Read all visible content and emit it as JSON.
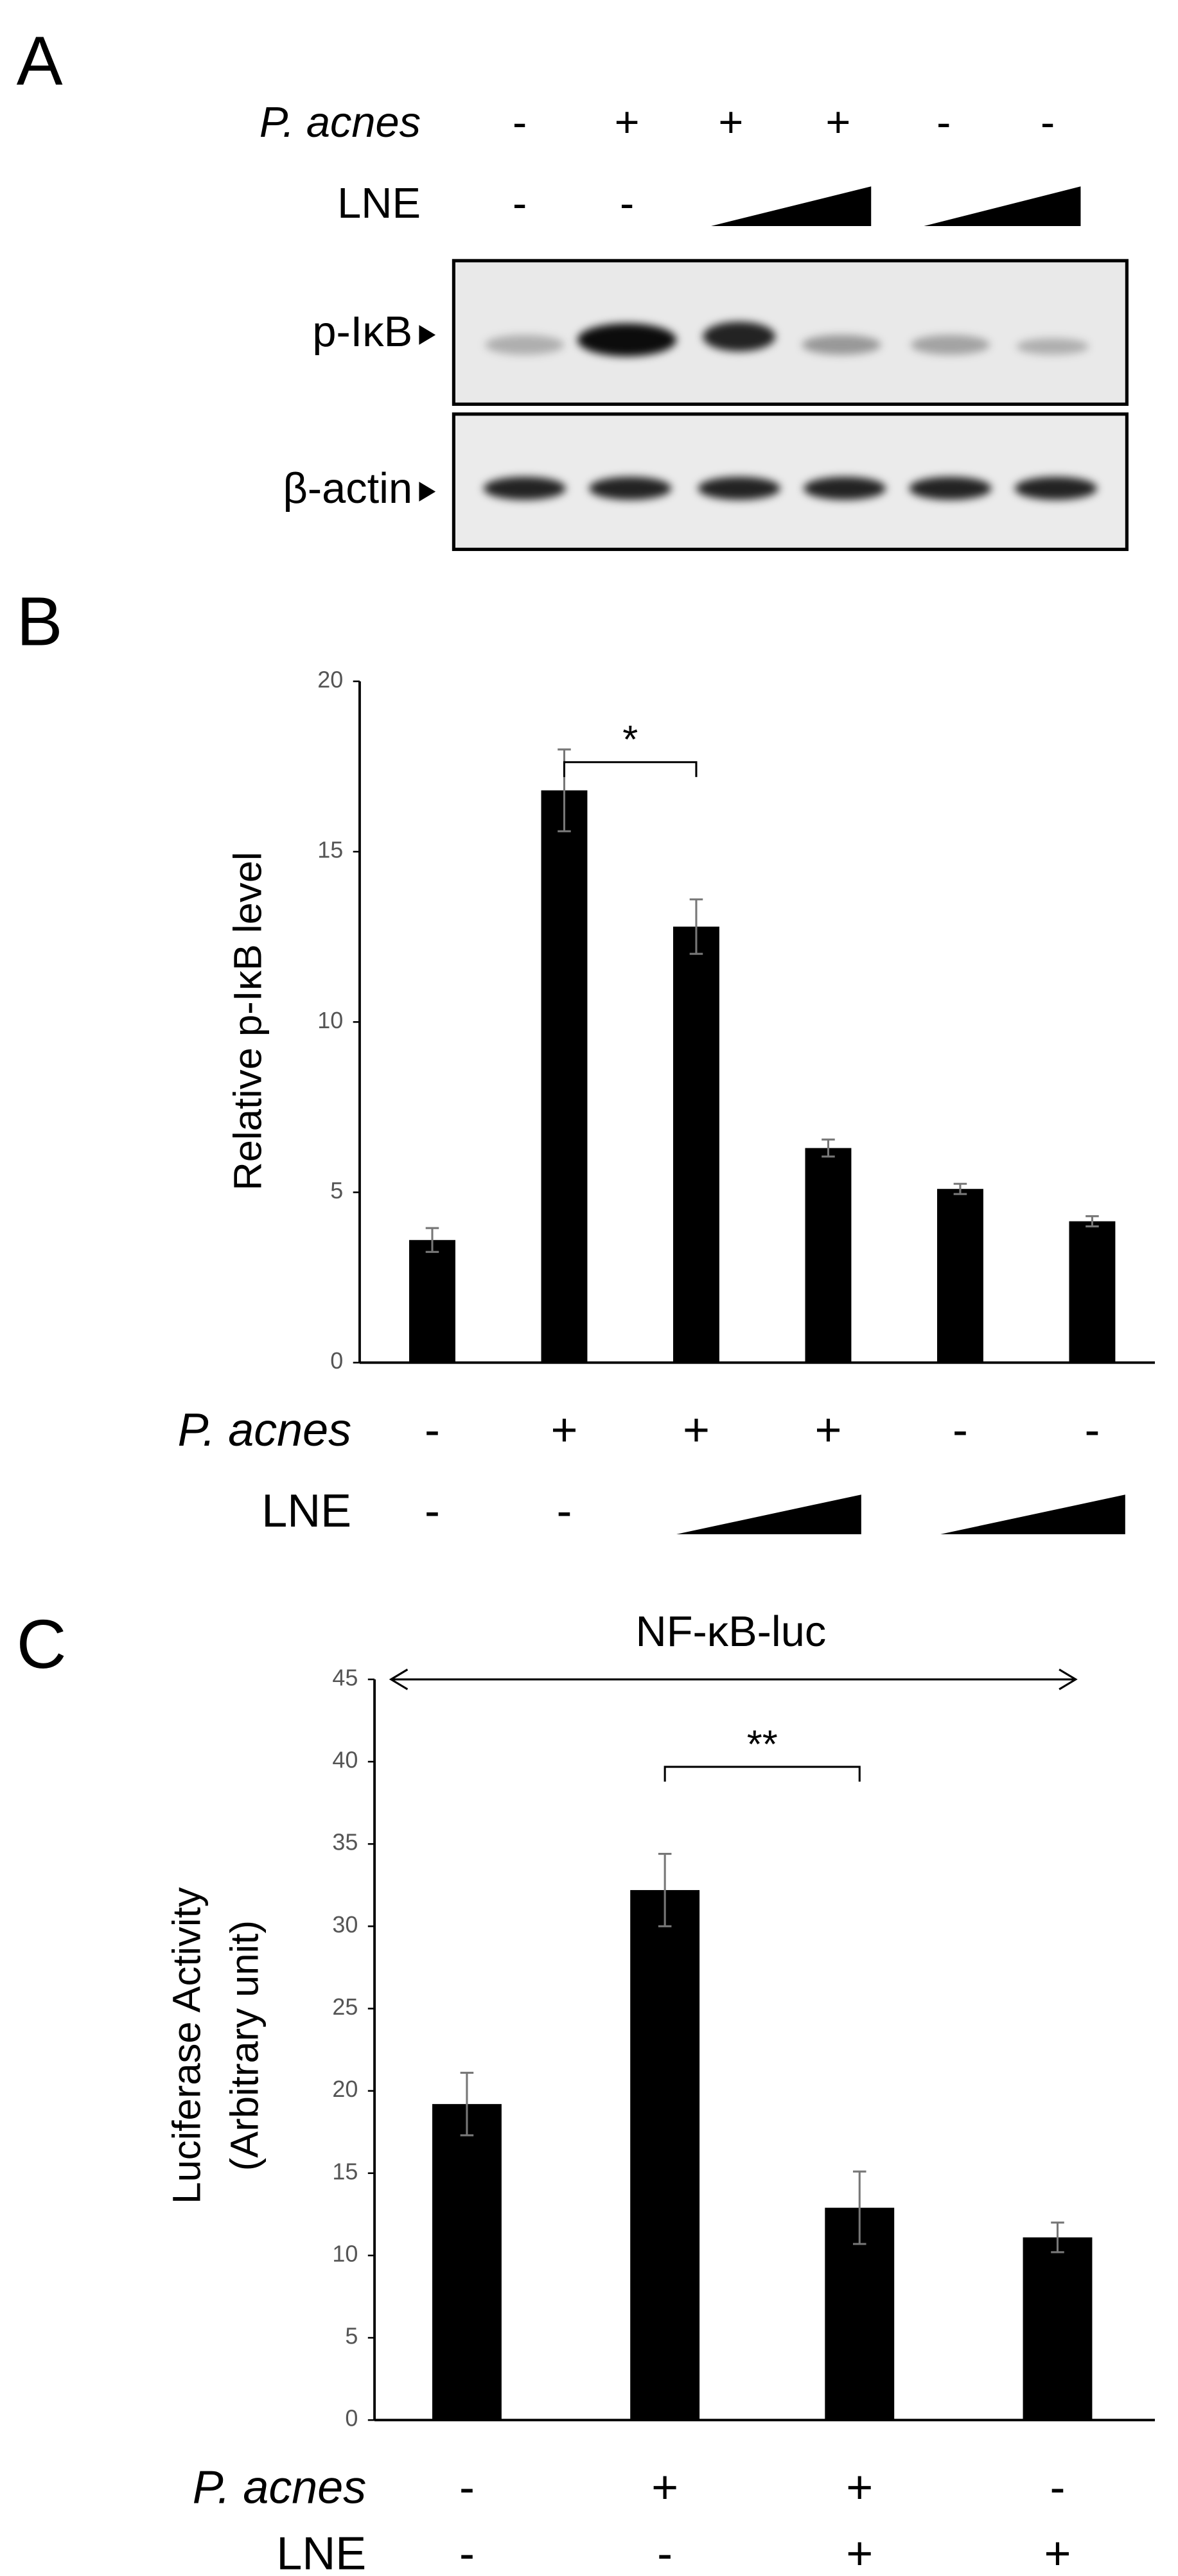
{
  "blot": {
    "panel_label": "A",
    "conditions": [
      {
        "label": "P. acnes",
        "values": [
          "-",
          "+",
          "+",
          "+",
          "-",
          "-"
        ]
      },
      {
        "label": "LNE",
        "values": [
          "-",
          "-",
          null,
          null,
          null,
          null
        ]
      }
    ],
    "rows": [
      "p-IκB",
      "β-actin"
    ]
  },
  "chart_data": [
    {
      "type": "bar",
      "panel_label": "B",
      "y_label": "Relative p-IκB level",
      "categories": [
        null,
        null,
        null,
        null,
        null,
        null
      ],
      "values": [
        3.6,
        16.8,
        12.8,
        6.3,
        5.1,
        4.15
      ],
      "errors": [
        0.35,
        1.2,
        0.8,
        0.25,
        0.15,
        0.15
      ],
      "color": "#000000",
      "ylim": [
        0,
        20
      ],
      "yticks": [
        0,
        5,
        10,
        15,
        20
      ],
      "annotations": [
        {
          "text": "*",
          "from": 1,
          "to": 2
        }
      ],
      "conditions": [
        {
          "label": "P. acnes",
          "values": [
            "-",
            "+",
            "+",
            "+",
            "-",
            "-"
          ]
        },
        {
          "label": "LNE",
          "values": [
            "-",
            "-",
            null,
            null,
            null,
            null
          ]
        }
      ]
    },
    {
      "type": "bar",
      "panel_label": "C",
      "title": "NF-κB-luc",
      "y_label": [
        "Luciferase Activity",
        "(Arbitrary unit)"
      ],
      "categories": [
        null,
        null,
        null,
        null
      ],
      "values": [
        19.2,
        32.2,
        12.9,
        11.1
      ],
      "errors": [
        1.9,
        2.2,
        2.2,
        0.9
      ],
      "color": "#000000",
      "ylim": [
        0,
        45
      ],
      "yticks": [
        0,
        5,
        10,
        15,
        20,
        25,
        30,
        35,
        40,
        45
      ],
      "annotations": [
        {
          "text": "**",
          "from": 1,
          "to": 2
        }
      ],
      "conditions": [
        {
          "label": "P. acnes",
          "values": [
            "-",
            "+",
            "+",
            "-"
          ]
        },
        {
          "label": "LNE",
          "values": [
            "-",
            "-",
            "+",
            "+"
          ]
        }
      ]
    }
  ]
}
